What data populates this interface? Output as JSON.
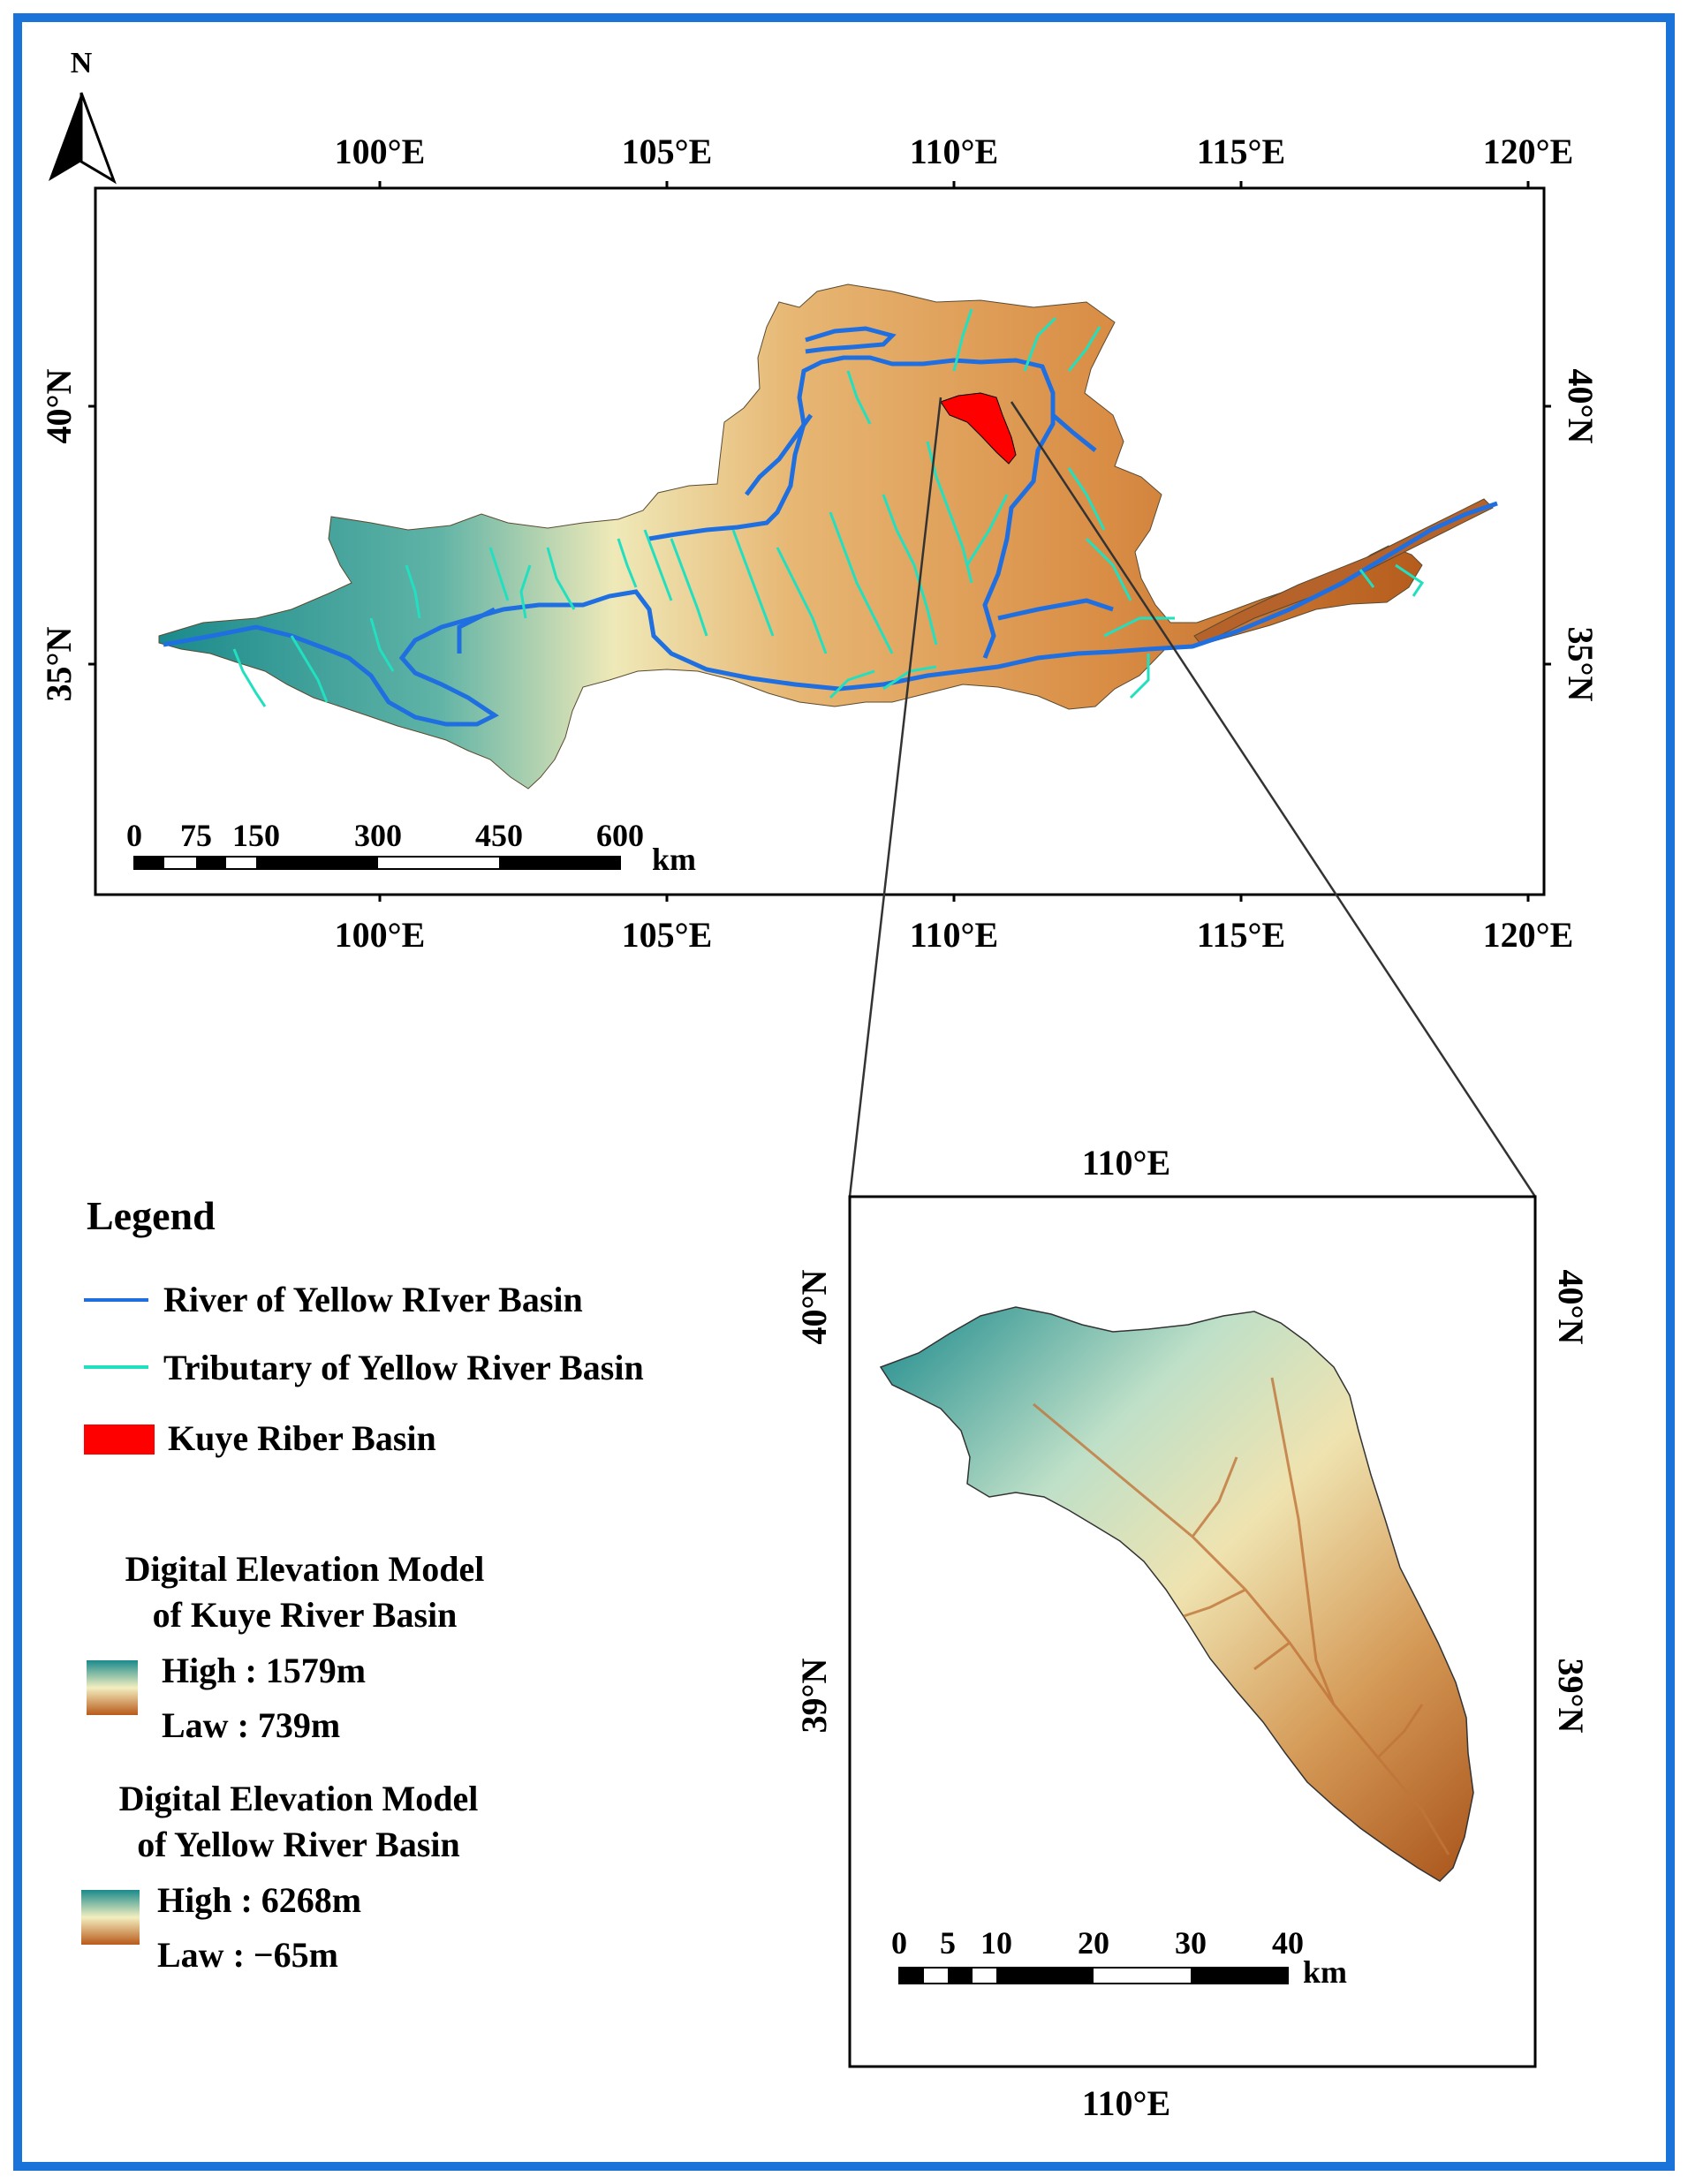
{
  "north_arrow": {
    "label": "N"
  },
  "main_map": {
    "top_lon_labels": [
      "100°E",
      "105°E",
      "110°E",
      "115°E",
      "120°E"
    ],
    "bottom_lon_labels": [
      "100°E",
      "105°E",
      "110°E",
      "115°E",
      "120°E"
    ],
    "left_lat_labels": [
      "40°N",
      "35°N"
    ],
    "right_lat_labels": [
      "40°N",
      "35°N"
    ],
    "scale_bar": {
      "ticks": [
        "0",
        "75",
        "150",
        "300",
        "450",
        "600"
      ],
      "unit": "km"
    }
  },
  "inset_map": {
    "top_lon_label": "110°E",
    "bottom_lon_label": "110°E",
    "left_lat_labels": [
      "40°N",
      "39°N"
    ],
    "right_lat_labels": [
      "40°N",
      "39°N"
    ],
    "scale_bar": {
      "ticks": [
        "0",
        "5",
        "10",
        "20",
        "30",
        "40"
      ],
      "unit": "km"
    }
  },
  "legend": {
    "title": "Legend",
    "items": [
      {
        "label": "River of Yellow RIver Basin",
        "color": "#1f6fe0",
        "symbol": "line"
      },
      {
        "label": "Tributary of Yellow River Basin",
        "color": "#21e0c0",
        "symbol": "line"
      },
      {
        "label": "Kuye Riber Basin",
        "color": "#ff0000",
        "symbol": "patch"
      }
    ],
    "dem_kuye": {
      "title_line1": "Digital Elevation Model",
      "title_line2": "of Kuye River Basin",
      "high": "High : 1579m",
      "low": "Law : 739m"
    },
    "dem_yellow": {
      "title_line1": "Digital Elevation Model",
      "title_line2": "of Yellow River Basin",
      "high": "High : 6268m",
      "low": "Law : −65m"
    }
  },
  "colors": {
    "frame": "#1a73d8",
    "dem_high": "#1b8a8c",
    "dem_mid": "#f3efc0",
    "dem_low": "#b85a1a"
  }
}
